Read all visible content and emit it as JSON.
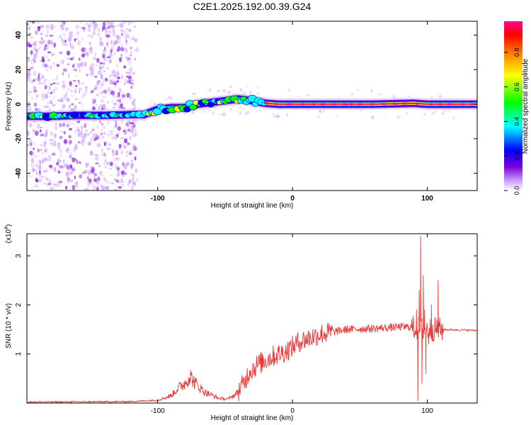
{
  "title": "C2E1.2025.192.00.39.G24",
  "chart_data": [
    {
      "type": "heatmap",
      "xlabel": "Height of straight line (km)",
      "ylabel": "Frequency (Hz)",
      "xlim": [
        -197,
        137
      ],
      "ylim": [
        -50,
        48
      ],
      "xticks": [
        -100,
        0,
        100
      ],
      "yticks": [
        -40,
        -20,
        0,
        20,
        40
      ],
      "colorbar": {
        "label": "Normalized spectral amplitude",
        "range": [
          0,
          0.98
        ],
        "ticks": [
          0.0,
          0.2,
          0.4,
          0.6,
          0.8
        ],
        "colors": [
          "#ffffff",
          "#cc99ff",
          "#7700dd",
          "#0000ff",
          "#00ffff",
          "#00ff00",
          "#ffff00",
          "#ff8800",
          "#ff0000",
          "#ff0099"
        ]
      },
      "ridge_points": [
        {
          "x": -197,
          "y": -7
        },
        {
          "x": -180,
          "y": -7
        },
        {
          "x": -160,
          "y": -6.5
        },
        {
          "x": -140,
          "y": -6.5
        },
        {
          "x": -120,
          "y": -6
        },
        {
          "x": -110,
          "y": -6
        },
        {
          "x": -100,
          "y": -3
        },
        {
          "x": -90,
          "y": -2
        },
        {
          "x": -80,
          "y": -2
        },
        {
          "x": -70,
          "y": 0
        },
        {
          "x": -60,
          "y": 1
        },
        {
          "x": -50,
          "y": 2
        },
        {
          "x": -40,
          "y": 3
        },
        {
          "x": -30,
          "y": 2
        },
        {
          "x": -20,
          "y": 0.5
        },
        {
          "x": -10,
          "y": 0
        },
        {
          "x": 0,
          "y": 0
        },
        {
          "x": 20,
          "y": 0
        },
        {
          "x": 60,
          "y": 0
        },
        {
          "x": 90,
          "y": 0.5
        },
        {
          "x": 100,
          "y": 0
        },
        {
          "x": 137,
          "y": 0
        }
      ],
      "noise_region": {
        "x_from": -197,
        "x_to": -115
      }
    },
    {
      "type": "line",
      "xlabel": "Height of straight line (km)",
      "ylabel": "SNR (10 * v/v)",
      "y_multiplier": "(x10",
      "y_multiplier_exp": "4",
      "y_multiplier_close": ")",
      "xlim": [
        -197,
        137
      ],
      "ylim": [
        0,
        3.45
      ],
      "xticks": [
        -100,
        0,
        100
      ],
      "yticks": [
        1,
        2,
        3
      ],
      "series": [
        {
          "color": "#ee3333",
          "envelope": [
            {
              "x": -197,
              "y": 0.02
            },
            {
              "x": -120,
              "y": 0.03
            },
            {
              "x": -100,
              "y": 0.06
            },
            {
              "x": -90,
              "y": 0.15
            },
            {
              "x": -85,
              "y": 0.3
            },
            {
              "x": -80,
              "y": 0.4
            },
            {
              "x": -76,
              "y": 0.55
            },
            {
              "x": -72,
              "y": 0.4
            },
            {
              "x": -65,
              "y": 0.22
            },
            {
              "x": -55,
              "y": 0.1
            },
            {
              "x": -48,
              "y": 0.08
            },
            {
              "x": -42,
              "y": 0.18
            },
            {
              "x": -36,
              "y": 0.4
            },
            {
              "x": -32,
              "y": 0.65
            },
            {
              "x": -25,
              "y": 0.8
            },
            {
              "x": -15,
              "y": 0.95
            },
            {
              "x": -5,
              "y": 1.05
            },
            {
              "x": 5,
              "y": 1.25
            },
            {
              "x": 20,
              "y": 1.4
            },
            {
              "x": 40,
              "y": 1.5
            },
            {
              "x": 60,
              "y": 1.52
            },
            {
              "x": 80,
              "y": 1.55
            },
            {
              "x": 88,
              "y": 1.55
            },
            {
              "x": 95,
              "y": 1.5
            },
            {
              "x": 110,
              "y": 1.5
            },
            {
              "x": 137,
              "y": 1.48
            }
          ],
          "spikes": [
            {
              "x": 92,
              "y": 1.9
            },
            {
              "x": 93,
              "y": 0.05
            },
            {
              "x": 94,
              "y": 2.3
            },
            {
              "x": 95,
              "y": 3.4
            },
            {
              "x": 96,
              "y": 0.4
            },
            {
              "x": 97,
              "y": 2.6
            },
            {
              "x": 98,
              "y": 1.9
            },
            {
              "x": 99,
              "y": 0.6
            },
            {
              "x": 101,
              "y": 1.2
            },
            {
              "x": 103,
              "y": 2.0
            },
            {
              "x": 105,
              "y": 1.3
            },
            {
              "x": 108,
              "y": 2.5
            },
            {
              "x": 110,
              "y": 1.4
            }
          ]
        }
      ]
    }
  ]
}
